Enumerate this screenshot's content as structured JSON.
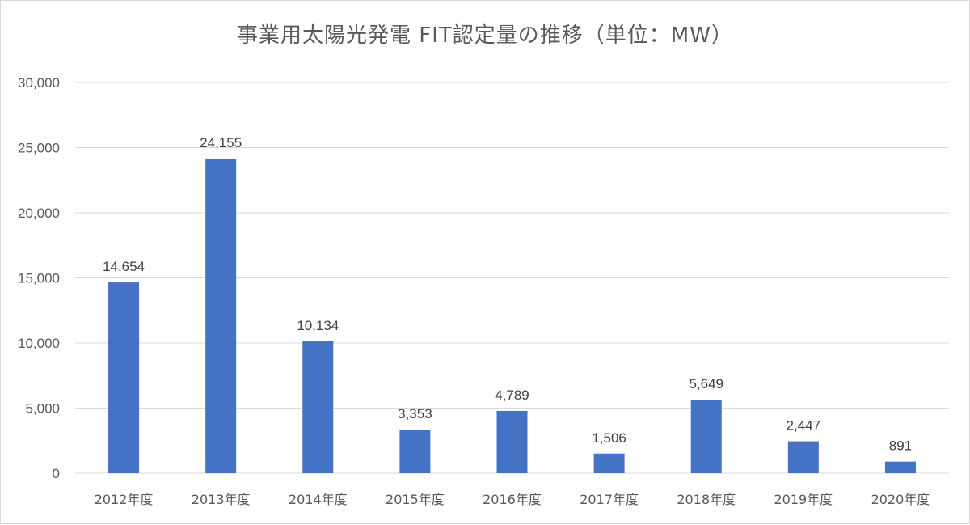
{
  "chart_data": {
    "type": "bar",
    "title": "事業用太陽光発電 FIT認定量の推移（単位：MW）",
    "categories": [
      "2012年度",
      "2013年度",
      "2014年度",
      "2015年度",
      "2016年度",
      "2017年度",
      "2018年度",
      "2019年度",
      "2020年度"
    ],
    "values": [
      14654,
      24155,
      10134,
      3353,
      4789,
      1506,
      5649,
      2447,
      891
    ],
    "data_labels": [
      "14,654",
      "24,155",
      "10,134",
      "3,353",
      "4,789",
      "1,506",
      "5,649",
      "2,447",
      "891"
    ],
    "ylim": [
      0,
      30000
    ],
    "yticks": [
      0,
      5000,
      10000,
      15000,
      20000,
      25000,
      30000
    ],
    "ytick_labels": [
      "0",
      "5,000",
      "10,000",
      "15,000",
      "20,000",
      "25,000",
      "30,000"
    ],
    "xlabel": "",
    "ylabel": "",
    "grid": true,
    "legend": "none",
    "colors": {
      "bar": "#4472c4",
      "grid": "#d9d9d9",
      "text": "#595959"
    }
  }
}
